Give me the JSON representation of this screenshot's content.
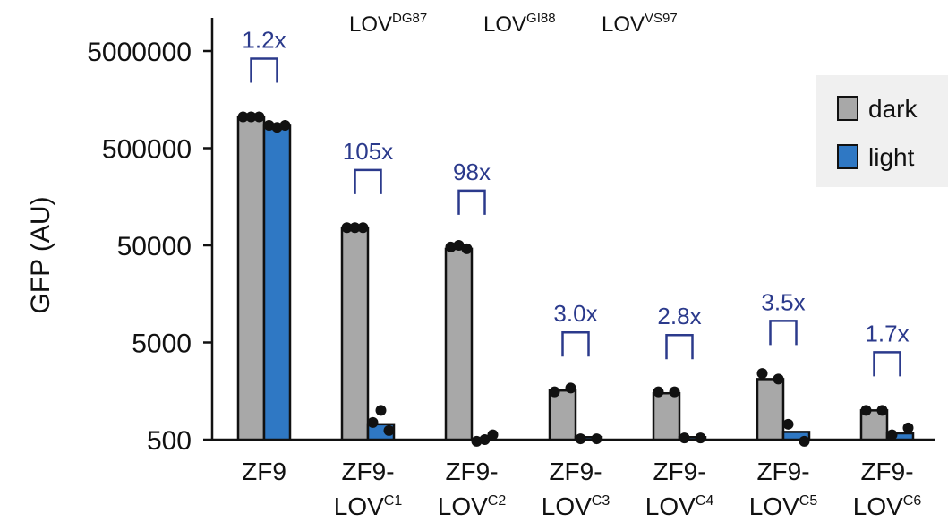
{
  "chart_data": {
    "type": "bar",
    "scale": "log",
    "ylabel": "GFP (AU)",
    "ylim": [
      500,
      8000000
    ],
    "yticks": [
      500,
      5000,
      50000,
      500000,
      5000000
    ],
    "ytick_labels": [
      "500",
      "5000",
      "50000",
      "500000",
      "5000000"
    ],
    "top_labels": [
      {
        "base": "LOV",
        "sup": "DG87"
      },
      {
        "base": "LOV",
        "sup": "GI88"
      },
      {
        "base": "LOV",
        "sup": "VS97"
      }
    ],
    "categories": [
      {
        "line1": "ZF9",
        "base": "",
        "sup": ""
      },
      {
        "line1": "ZF9-",
        "base": "LOV",
        "sup": "C1"
      },
      {
        "line1": "ZF9-",
        "base": "LOV",
        "sup": "C2"
      },
      {
        "line1": "ZF9-",
        "base": "LOV",
        "sup": "C3"
      },
      {
        "line1": "ZF9-",
        "base": "LOV",
        "sup": "C4"
      },
      {
        "line1": "ZF9-",
        "base": "LOV",
        "sup": "C5"
      },
      {
        "line1": "ZF9-",
        "base": "LOV",
        "sup": "C6"
      }
    ],
    "series": [
      {
        "name": "dark",
        "color": "#a8a8a8",
        "values": [
          1050000,
          75000,
          46000,
          1600,
          1500,
          2100,
          1000
        ]
      },
      {
        "name": "light",
        "color": "#2f78c4",
        "values": [
          850000,
          720,
          470,
          530,
          530,
          600,
          580
        ]
      }
    ],
    "points": {
      "dark": [
        [
          1050000,
          1050000,
          1050000
        ],
        [
          76000,
          76000,
          76000
        ],
        [
          48000,
          50000,
          46000
        ],
        [
          1550,
          1700
        ],
        [
          1550,
          1550
        ],
        [
          2400,
          2100
        ],
        [
          1000,
          1000
        ]
      ],
      "light": [
        [
          860000,
          820000,
          860000
        ],
        [
          750,
          1000,
          620
        ],
        [
          480,
          500,
          560
        ],
        [
          510,
          510
        ],
        [
          520,
          520
        ],
        [
          720,
          480
        ],
        [
          560,
          660
        ]
      ]
    },
    "fold_changes": [
      "1.2x",
      "105x",
      "98x",
      "3.0x",
      "2.8x",
      "3.5x",
      "1.7x"
    ],
    "legend": {
      "position": "top-right",
      "entries": [
        "dark",
        "light"
      ]
    },
    "grid": false
  }
}
